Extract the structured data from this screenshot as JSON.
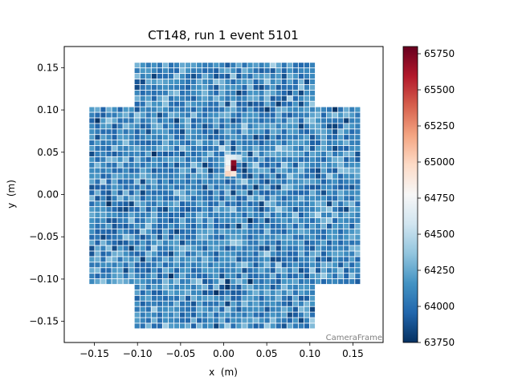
{
  "chart_data": {
    "type": "heatmap",
    "title": "CT148, run 1 event 5101",
    "xlabel": "x  (m)",
    "ylabel": "y  (m)",
    "xlim": [
      -0.185,
      0.185
    ],
    "ylim": [
      -0.175,
      0.175
    ],
    "xticks": [
      -0.15,
      -0.1,
      -0.05,
      0.0,
      0.05,
      0.1,
      0.15
    ],
    "xtick_labels": [
      "−0.15",
      "−0.10",
      "−0.05",
      "0.00",
      "0.05",
      "0.10",
      "0.15"
    ],
    "yticks": [
      -0.15,
      -0.1,
      -0.05,
      0.0,
      0.05,
      0.1,
      0.15
    ],
    "ytick_labels": [
      "−0.15",
      "−0.10",
      "−0.05",
      "0.00",
      "0.05",
      "0.10",
      "0.15"
    ],
    "colorbar": {
      "colormap": "RdBu_r",
      "range": [
        63750,
        65800
      ],
      "ticks": [
        63750,
        64000,
        64250,
        64500,
        64750,
        65000,
        65250,
        65500,
        65750
      ],
      "tick_labels": [
        "63750",
        "64000",
        "64250",
        "64500",
        "64750",
        "65000",
        "65250",
        "65500",
        "65750"
      ]
    },
    "frame_label": "CameraFrame",
    "camera_layout": {
      "module_size_m": 0.0525,
      "pixels_per_module_side": 8,
      "module_centers_m": [
        [
          -0.0775,
          0.13
        ],
        [
          -0.025,
          0.13
        ],
        [
          0.0275,
          0.13
        ],
        [
          0.08,
          0.13
        ],
        [
          -0.13,
          0.0775
        ],
        [
          -0.0775,
          0.0775
        ],
        [
          -0.025,
          0.0775
        ],
        [
          0.0275,
          0.0775
        ],
        [
          0.08,
          0.0775
        ],
        [
          0.1325,
          0.0775
        ],
        [
          -0.13,
          0.025
        ],
        [
          -0.0775,
          0.025
        ],
        [
          -0.025,
          0.025
        ],
        [
          0.0275,
          0.025
        ],
        [
          0.08,
          0.025
        ],
        [
          0.1325,
          0.025
        ],
        [
          -0.13,
          -0.0275
        ],
        [
          -0.0775,
          -0.0275
        ],
        [
          -0.025,
          -0.0275
        ],
        [
          0.0275,
          -0.0275
        ],
        [
          0.08,
          -0.0275
        ],
        [
          0.1325,
          -0.0275
        ],
        [
          -0.13,
          -0.08
        ],
        [
          -0.0775,
          -0.08
        ],
        [
          -0.025,
          -0.08
        ],
        [
          0.0275,
          -0.08
        ],
        [
          0.08,
          -0.08
        ],
        [
          0.1325,
          -0.08
        ],
        [
          -0.0775,
          -0.1325
        ],
        [
          -0.025,
          -0.1325
        ],
        [
          0.0275,
          -0.1325
        ],
        [
          0.08,
          -0.1325
        ]
      ],
      "baseline_value": 64100,
      "baseline_spread": 260,
      "hot_pixels": [
        {
          "x": 0.0115,
          "y": 0.031,
          "value": 65800
        },
        {
          "x": 0.0115,
          "y": 0.0375,
          "value": 65700
        },
        {
          "x": 0.005,
          "y": 0.031,
          "value": 64850
        },
        {
          "x": 0.005,
          "y": 0.0375,
          "value": 64750
        },
        {
          "x": 0.005,
          "y": 0.044,
          "value": 64700
        },
        {
          "x": 0.018,
          "y": 0.044,
          "value": 64550
        },
        {
          "x": 0.0115,
          "y": 0.044,
          "value": 64650
        },
        {
          "x": 0.005,
          "y": 0.0245,
          "value": 65000
        },
        {
          "x": 0.0115,
          "y": 0.0245,
          "value": 64900
        }
      ]
    }
  }
}
